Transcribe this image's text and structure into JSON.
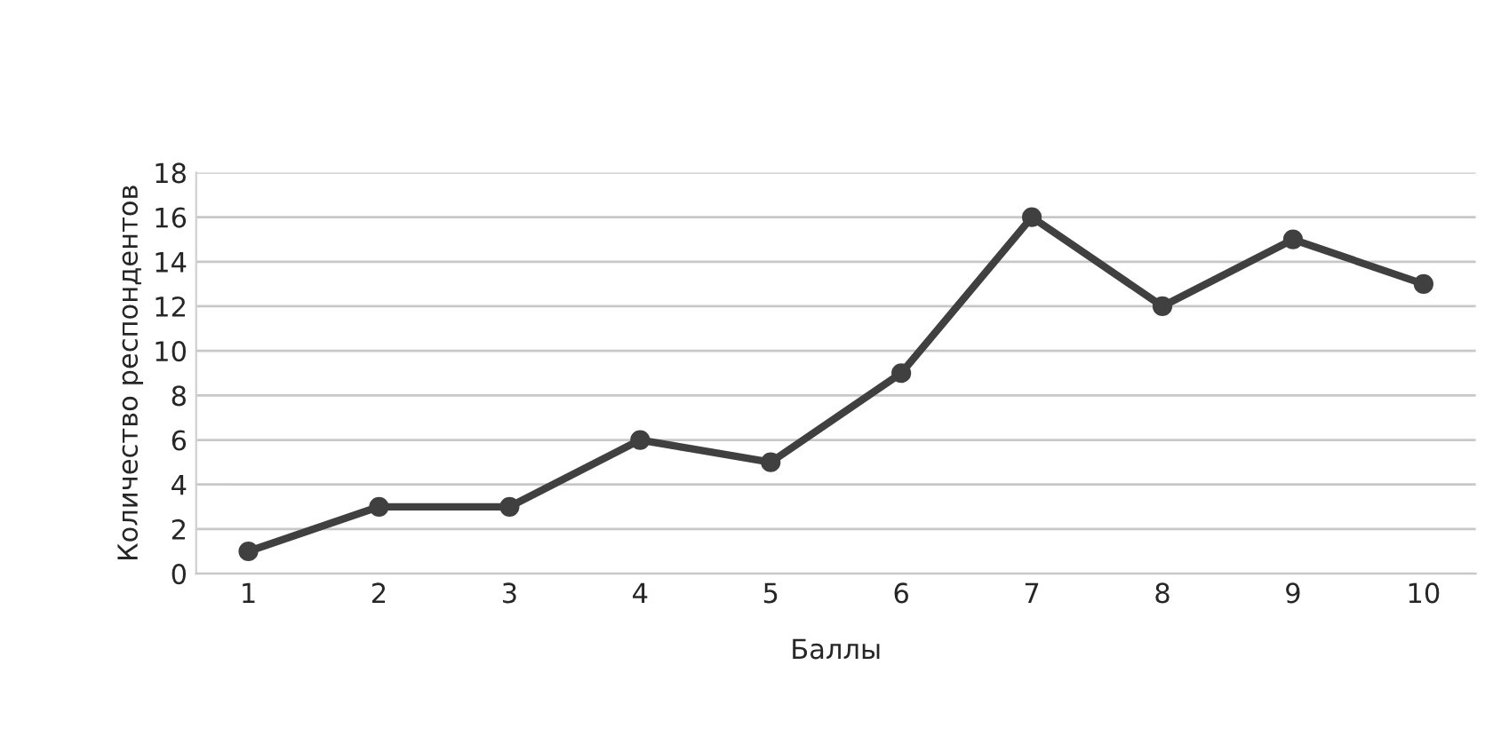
{
  "chart_data": {
    "type": "line",
    "xlabel": "Баллы",
    "ylabel": "Количество респондентов",
    "categories": [
      "1",
      "2",
      "3",
      "4",
      "5",
      "6",
      "7",
      "8",
      "9",
      "10"
    ],
    "series": [
      {
        "color": "#404040",
        "values": [
          1,
          3,
          3,
          6,
          5,
          9,
          16,
          12,
          15,
          13
        ]
      }
    ],
    "ylim": [
      0,
      18
    ],
    "yticks": [
      0,
      2,
      4,
      6,
      8,
      10,
      12,
      14,
      16,
      18
    ],
    "grid": "y",
    "marker": "circle",
    "line_style": "solid",
    "legend": false
  }
}
